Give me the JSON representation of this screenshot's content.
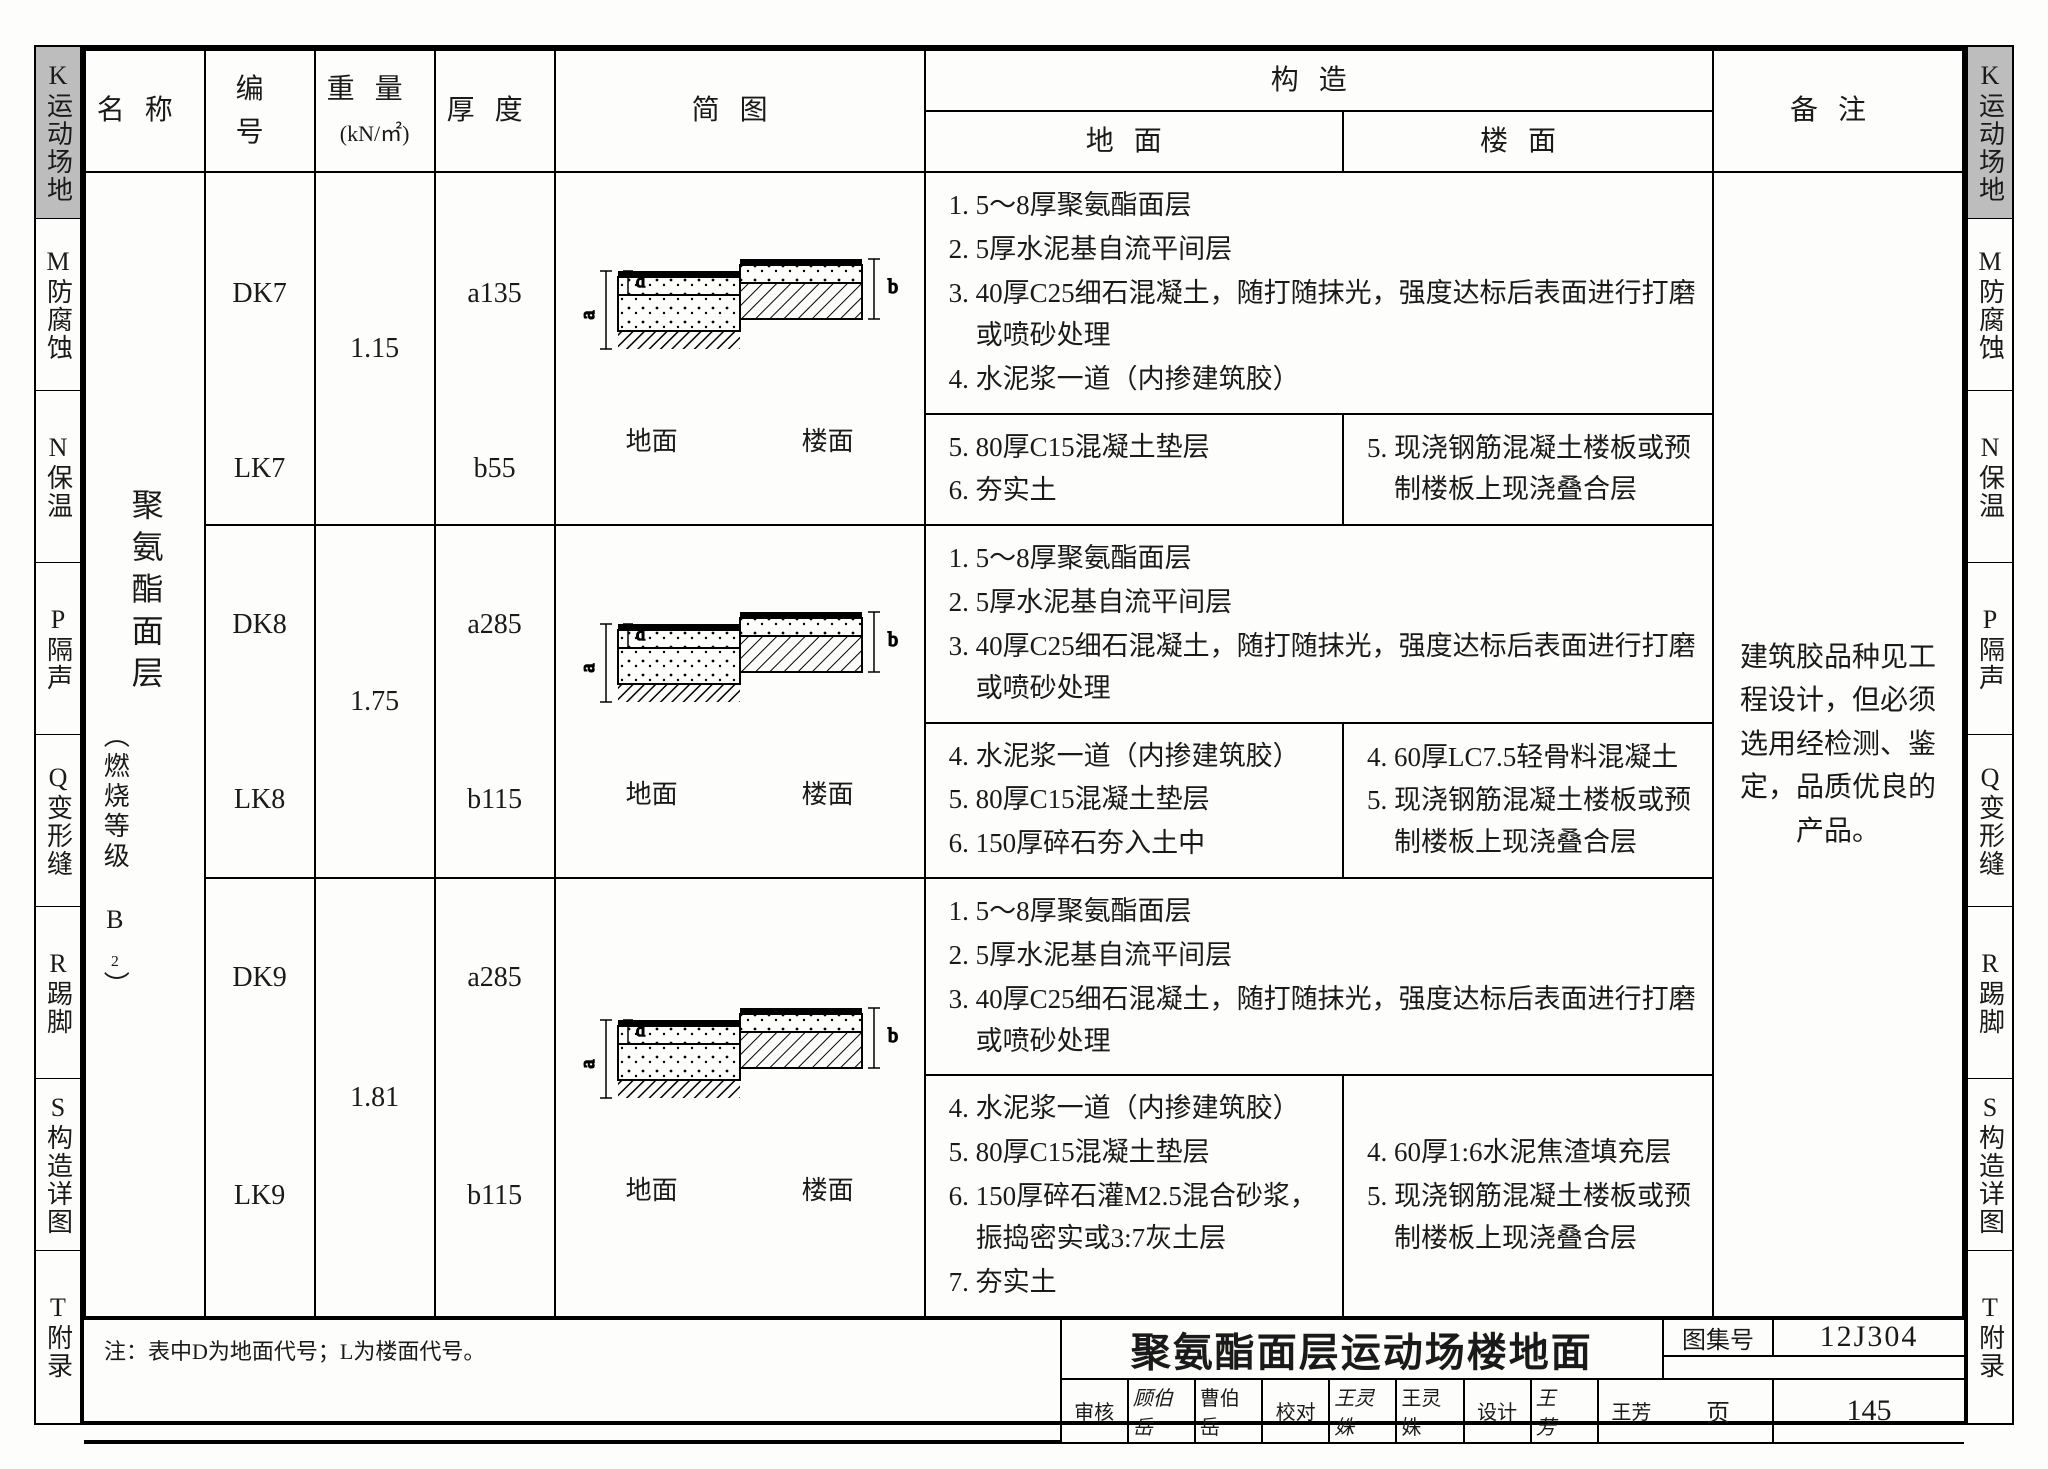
{
  "side_tabs": [
    {
      "text": "K运动场地",
      "dark": true
    },
    {
      "text": "M防腐蚀",
      "dark": false
    },
    {
      "text": "N保温",
      "dark": false
    },
    {
      "text": "P隔声",
      "dark": false
    },
    {
      "text": "Q变形缝",
      "dark": false
    },
    {
      "text": "R踢脚",
      "dark": false
    },
    {
      "text": "S构造详图",
      "dark": false
    },
    {
      "text": "T附录",
      "dark": false
    }
  ],
  "headers": {
    "name": "名称",
    "code": "编号",
    "weight": "重量",
    "weight_unit": "(kN/㎡)",
    "thickness": "厚度",
    "diagram": "简图",
    "construction": "构造",
    "ground": "地面",
    "floor": "楼面",
    "remarks": "备注"
  },
  "row_name_main": "聚氨酯面层",
  "row_name_sub": "（燃烧等级 B₂）",
  "rows": [
    {
      "codes": [
        "DK7",
        "LK7"
      ],
      "weight": "1.15",
      "thick": [
        "a135",
        "b55"
      ],
      "top_lines": [
        "5～8厚聚氨酯面层",
        "5厚水泥基自流平间层",
        "40厚C25细石混凝土，随打随抹光，强度达标后表面进行打磨或喷砂处理",
        "水泥浆一道（内掺建筑胶）"
      ],
      "ground_lines": [
        "80厚C15混凝土垫层",
        "夯实土"
      ],
      "floor_lines": [
        "现浇钢筋混凝土楼板或预制楼板上现浇叠合层"
      ],
      "floor_start": 5
    },
    {
      "codes": [
        "DK8",
        "LK8"
      ],
      "weight": "1.75",
      "thick": [
        "a285",
        "b115"
      ],
      "top_lines": [
        "5～8厚聚氨酯面层",
        "5厚水泥基自流平间层",
        "40厚C25细石混凝土，随打随抹光，强度达标后表面进行打磨或喷砂处理"
      ],
      "ground_lines": [
        "水泥浆一道（内掺建筑胶）",
        "80厚C15混凝土垫层",
        "150厚碎石夯入土中"
      ],
      "floor_lines": [
        "60厚LC7.5轻骨料混凝土",
        "现浇钢筋混凝土楼板或预制楼板上现浇叠合层"
      ],
      "floor_start": 4
    },
    {
      "codes": [
        "DK9",
        "LK9"
      ],
      "weight": "1.81",
      "thick": [
        "a285",
        "b115"
      ],
      "top_lines": [
        "5～8厚聚氨酯面层",
        "5厚水泥基自流平间层",
        "40厚C25细石混凝土，随打随抹光，强度达标后表面进行打磨或喷砂处理"
      ],
      "ground_lines": [
        "水泥浆一道（内掺建筑胶）",
        "80厚C15混凝土垫层",
        "150厚碎石灌M2.5混合砂浆，振捣密实或3:7灰土层",
        "夯实土"
      ],
      "floor_lines": [
        "60厚1:6水泥焦渣填充层",
        "现浇钢筋混凝土楼板或预制楼板上现浇叠合层"
      ],
      "floor_start": 4
    }
  ],
  "remarks_text": "建筑胶品种见工程设计，但必须选用经检测、鉴定，品质优良的产品。",
  "foot_note": "注：表中D为地面代号；L为楼面代号。",
  "title_block": {
    "title": "聚氨酯面层运动场楼地面",
    "atlas_label": "图集号",
    "atlas_no": "12J304",
    "page_label": "页",
    "page_no": "145",
    "approval": [
      [
        "审核",
        "顾伯岳"
      ],
      [
        "",
        "曹伯岳"
      ],
      [
        "校对",
        "王灵姝"
      ],
      [
        "",
        "王灵姝"
      ],
      [
        "设计",
        "王　芳"
      ],
      [
        "",
        "王芳"
      ]
    ]
  },
  "diagram_labels": {
    "ground": "地面",
    "floor": "楼面"
  }
}
